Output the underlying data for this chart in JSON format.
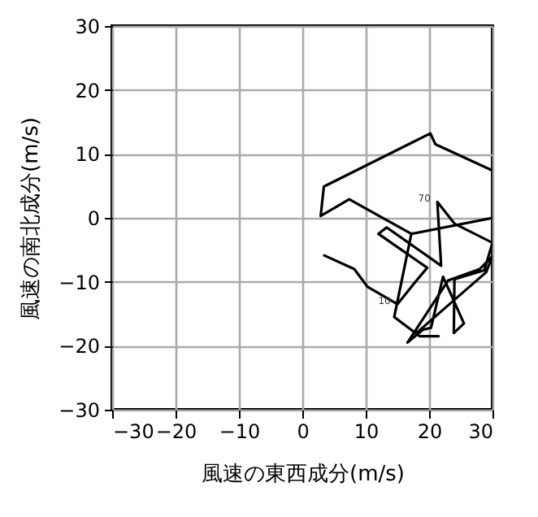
{
  "chart_data": {
    "type": "line",
    "xlabel": "風速の東西成分(m/s)",
    "ylabel": "風速の南北成分(m/s)",
    "x": [
      3.3,
      8.2,
      10.3,
      15,
      17.6,
      19.7,
      12,
      13.3,
      20.5,
      21.9,
      21.3,
      24,
      30,
      28.7,
      24,
      23.9,
      25.5,
      22.2,
      20.3,
      19,
      16.6,
      23,
      28,
      30,
      29,
      18,
      18.5,
      21.5,
      18.5,
      14.5,
      17.2,
      30,
      17.2,
      7.4,
      2.9,
      3.4,
      20.2,
      21,
      30
    ],
    "series": [
      {
        "color": "#000000",
        "values": [
          -5.8,
          -8,
          -10.8,
          -13.5,
          -10.3,
          -7.8,
          -2.5,
          -1.5,
          -6.5,
          -7.5,
          2.5,
          -0.9,
          -3.9,
          -8.2,
          -9.6,
          -18,
          -16.5,
          -9.2,
          -17.2,
          -17.5,
          -19.5,
          -9.8,
          -8,
          -6,
          -8.5,
          -18,
          -18.5,
          -18.5,
          -18.5,
          -15.5,
          -2.5,
          0,
          -2.5,
          2.9,
          0.3,
          4.9,
          13.2,
          11.5,
          7.4
        ]
      }
    ],
    "xlim": [
      -30,
      30
    ],
    "ylim": [
      -30,
      30
    ],
    "xticks": [
      -30,
      -20,
      -10,
      0,
      10,
      20,
      30
    ],
    "yticks": [
      -30,
      -20,
      -10,
      0,
      10,
      20,
      30
    ],
    "grid": true,
    "annotations": [
      {
        "text": "10",
        "x": 15,
        "y": -13.5
      },
      {
        "text": "70",
        "x": 21.3,
        "y": 2.5
      }
    ]
  }
}
